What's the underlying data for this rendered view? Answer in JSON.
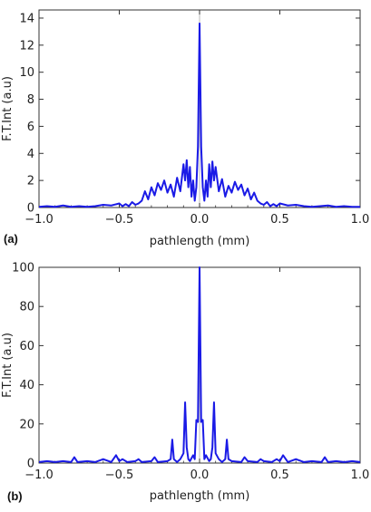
{
  "colors": {
    "line": "#1a1ae6",
    "axis": "#333333",
    "zero_line": "#bbbbbb"
  },
  "chart_data": [
    {
      "type": "line",
      "panel_label": "(a)",
      "xlabel": "pathlength (mm)",
      "ylabel": "F.T.Int (a.u)",
      "xlim": [
        -1.0,
        1.0
      ],
      "ylim": [
        0,
        14.6
      ],
      "xticks": [
        "−1.0",
        "−0.5",
        "0.0",
        "0.5",
        "1.0"
      ],
      "xtick_values": [
        -1.0,
        -0.5,
        0.0,
        0.5,
        1.0
      ],
      "yticks": [
        "0",
        "2",
        "4",
        "6",
        "8",
        "10",
        "12",
        "14"
      ],
      "ytick_values": [
        0,
        2,
        4,
        6,
        8,
        10,
        12,
        14
      ],
      "grid": false,
      "series": [
        {
          "x": [
            -1.0,
            -0.95,
            -0.9,
            -0.85,
            -0.8,
            -0.75,
            -0.7,
            -0.65,
            -0.6,
            -0.55,
            -0.5,
            -0.48,
            -0.46,
            -0.44,
            -0.42,
            -0.4,
            -0.38,
            -0.36,
            -0.34,
            -0.32,
            -0.3,
            -0.28,
            -0.26,
            -0.24,
            -0.22,
            -0.2,
            -0.18,
            -0.16,
            -0.14,
            -0.12,
            -0.1,
            -0.09,
            -0.08,
            -0.07,
            -0.06,
            -0.05,
            -0.04,
            -0.03,
            -0.02,
            -0.01,
            0.0,
            0.01,
            0.02,
            0.03,
            0.04,
            0.05,
            0.06,
            0.07,
            0.08,
            0.09,
            0.1,
            0.12,
            0.14,
            0.16,
            0.18,
            0.2,
            0.22,
            0.24,
            0.26,
            0.28,
            0.3,
            0.32,
            0.34,
            0.36,
            0.38,
            0.4,
            0.42,
            0.44,
            0.46,
            0.48,
            0.5,
            0.55,
            0.6,
            0.65,
            0.7,
            0.75,
            0.8,
            0.85,
            0.9,
            0.95,
            1.0
          ],
          "y": [
            0.05,
            0.1,
            0.05,
            0.15,
            0.05,
            0.1,
            0.05,
            0.1,
            0.2,
            0.15,
            0.3,
            0.1,
            0.25,
            0.1,
            0.4,
            0.2,
            0.3,
            0.5,
            1.2,
            0.6,
            1.5,
            0.9,
            1.8,
            1.3,
            2.0,
            1.1,
            1.7,
            0.8,
            2.2,
            1.2,
            3.2,
            2.0,
            3.5,
            1.5,
            3.0,
            0.8,
            2.0,
            0.5,
            1.5,
            4.5,
            13.6,
            4.5,
            1.5,
            0.5,
            2.0,
            0.8,
            3.2,
            1.5,
            3.4,
            2.0,
            3.0,
            1.2,
            2.1,
            0.8,
            1.6,
            1.1,
            1.9,
            1.3,
            1.7,
            0.9,
            1.4,
            0.6,
            1.1,
            0.5,
            0.3,
            0.2,
            0.4,
            0.1,
            0.25,
            0.1,
            0.3,
            0.15,
            0.2,
            0.1,
            0.05,
            0.1,
            0.15,
            0.05,
            0.1,
            0.05,
            0.05
          ]
        }
      ]
    },
    {
      "type": "line",
      "panel_label": "(b)",
      "xlabel": "pathlength (mm)",
      "ylabel": "F.T.Int (a.u)",
      "xlim": [
        -1.0,
        1.0
      ],
      "ylim": [
        0,
        100
      ],
      "xticks": [
        "−1.0",
        "−0.5",
        "0.0",
        "0.5",
        "1.0"
      ],
      "xtick_values": [
        -1.0,
        -0.5,
        0.0,
        0.5,
        1.0
      ],
      "yticks": [
        "0",
        "20",
        "40",
        "60",
        "80",
        "100"
      ],
      "ytick_values": [
        0,
        20,
        40,
        60,
        80,
        100
      ],
      "grid": false,
      "series": [
        {
          "x": [
            -1.0,
            -0.95,
            -0.9,
            -0.85,
            -0.8,
            -0.78,
            -0.76,
            -0.7,
            -0.65,
            -0.6,
            -0.55,
            -0.52,
            -0.5,
            -0.48,
            -0.45,
            -0.4,
            -0.38,
            -0.36,
            -0.3,
            -0.28,
            -0.26,
            -0.2,
            -0.18,
            -0.17,
            -0.16,
            -0.14,
            -0.12,
            -0.1,
            -0.09,
            -0.08,
            -0.07,
            -0.06,
            -0.04,
            -0.03,
            -0.02,
            -0.01,
            0.0,
            0.01,
            0.02,
            0.03,
            0.04,
            0.06,
            0.07,
            0.08,
            0.09,
            0.1,
            0.12,
            0.14,
            0.16,
            0.17,
            0.18,
            0.2,
            0.26,
            0.28,
            0.3,
            0.36,
            0.38,
            0.4,
            0.45,
            0.48,
            0.5,
            0.52,
            0.55,
            0.6,
            0.65,
            0.7,
            0.76,
            0.78,
            0.8,
            0.85,
            0.9,
            0.95,
            1.0
          ],
          "y": [
            0.5,
            1,
            0.5,
            1,
            0.5,
            3,
            0.5,
            1,
            0.5,
            2,
            0.5,
            4,
            1,
            2,
            0.5,
            1,
            2,
            0.5,
            1,
            3,
            0.5,
            1,
            2,
            12,
            2,
            0.5,
            2,
            5,
            31,
            8,
            2,
            1,
            4,
            2,
            22,
            21,
            100,
            21,
            22,
            2,
            4,
            1,
            2,
            8,
            31,
            5,
            2,
            0.5,
            2,
            12,
            2,
            1,
            0.5,
            3,
            1,
            0.5,
            2,
            1,
            0.5,
            2,
            1,
            4,
            0.5,
            2,
            0.5,
            1,
            0.5,
            3,
            0.5,
            1,
            0.5,
            1,
            0.5
          ]
        }
      ]
    }
  ]
}
